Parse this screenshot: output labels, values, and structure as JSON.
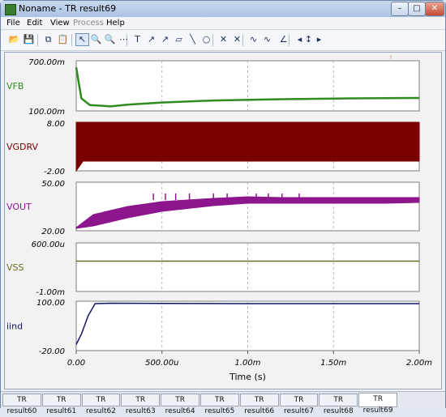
{
  "window": {
    "title": "Noname - TR result69",
    "icon": "tina-icon",
    "buttons": [
      "minimize-icon",
      "maximize-icon",
      "close-icon"
    ]
  },
  "menu": [
    {
      "label": "File",
      "enabled": true
    },
    {
      "label": "Edit",
      "enabled": true
    },
    {
      "label": "View",
      "enabled": true
    },
    {
      "label": "Process",
      "enabled": false
    },
    {
      "label": "Help",
      "enabled": true
    }
  ],
  "toolbar": {
    "icons": [
      "open-folder-icon",
      "save-icon",
      "copy-icon",
      "paste-icon",
      "arrow-pointer-icon",
      "zoom-in-icon",
      "zoom-out-icon",
      "grid-icon",
      "text-tool-icon",
      "arrow-tool-icon",
      "arrow-tool-2-icon",
      "shape-tool-icon",
      "line-tool-icon",
      "circle-tool-icon",
      "cursor-a-icon",
      "cursor-b-icon",
      "curve-tool-icon",
      "curve-tool-2-icon",
      "angle-tool-icon",
      "left-arrow-icon",
      "up-down-arrow-icon",
      "right-arrow-icon"
    ],
    "symbols": [
      "📂",
      "💾",
      "⧉",
      "📋",
      "↖",
      "🔍",
      "🔍",
      "⋯",
      "T",
      "↗",
      "↗",
      "▱",
      "╲",
      "○",
      "✕",
      "✕",
      "∿",
      "∿",
      "∠",
      "◂",
      "↕",
      "▸"
    ],
    "selected_index": 4
  },
  "colors": {
    "vfb": "#2e8b1e",
    "vgdrv": "#7a0000",
    "vout": "#8e168c",
    "vss": "#6b6b1f",
    "iind": "#15136b",
    "grid": "#b8b8b8"
  },
  "chart_data": [
    {
      "type": "line",
      "name": "VFB",
      "ylim": [
        "100.00m",
        "700.00m"
      ],
      "ylim_values": [
        0.1,
        0.7
      ],
      "x": [
        0,
        3e-05,
        8e-05,
        0.0002,
        0.0003,
        0.0005,
        0.0008,
        0.0012,
        0.0016,
        0.002
      ],
      "y": [
        0.62,
        0.25,
        0.17,
        0.155,
        0.175,
        0.2,
        0.225,
        0.24,
        0.25,
        0.255
      ]
    },
    {
      "type": "area",
      "name": "VGDRV",
      "ylim": [
        "-2.00",
        "8.00"
      ],
      "ylim_values": [
        -2,
        8
      ],
      "x": [
        0,
        4e-05,
        0.0002,
        0.002
      ],
      "y_high": [
        8,
        8,
        8,
        8
      ],
      "y_low": [
        -2,
        0,
        0,
        0
      ]
    },
    {
      "type": "line",
      "name": "VOUT",
      "ylim": [
        "20.00",
        "50.00"
      ],
      "ylim_values": [
        20,
        50
      ],
      "x": [
        0,
        0.0001,
        0.0003,
        0.0005,
        0.0008,
        0.001,
        0.0012,
        0.0015,
        0.0018,
        0.002
      ],
      "y_high": [
        22,
        30,
        35,
        38,
        40,
        41,
        40.5,
        40.5,
        40.5,
        40.5
      ],
      "y_low": [
        21.5,
        23,
        28,
        32,
        35.5,
        37,
        37,
        37,
        37,
        37.5
      ]
    },
    {
      "type": "line",
      "name": "VSS",
      "ylim": [
        "-1.00m",
        "600.00u"
      ],
      "ylim_values": [
        -0.001,
        0.0006
      ],
      "x": [
        0,
        0.002
      ],
      "y": [
        0,
        0
      ]
    },
    {
      "type": "line",
      "name": "iind",
      "ylim": [
        "-20.00",
        "100.00"
      ],
      "ylim_values": [
        -20,
        100
      ],
      "x": [
        0,
        3e-05,
        7e-05,
        0.00011,
        0.0002,
        0.0005,
        0.001,
        0.0015,
        0.002
      ],
      "y": [
        -5,
        20,
        65,
        94,
        95,
        94.5,
        94,
        94,
        94
      ]
    }
  ],
  "x_axis": {
    "label": "Time (s)",
    "range": [
      0,
      0.002
    ],
    "ticks": [
      0,
      0.0005,
      0.001,
      0.0015,
      0.002
    ],
    "tick_labels": [
      "0.00",
      "500.00u",
      "1.00m",
      "1.50m",
      "2.00m"
    ]
  },
  "tabs": [
    "TR result60",
    "TR result61",
    "TR result62",
    "TR result63",
    "TR result64",
    "TR result65",
    "TR result66",
    "TR result67",
    "TR result68",
    "TR result69"
  ],
  "active_tab": "TR result69"
}
